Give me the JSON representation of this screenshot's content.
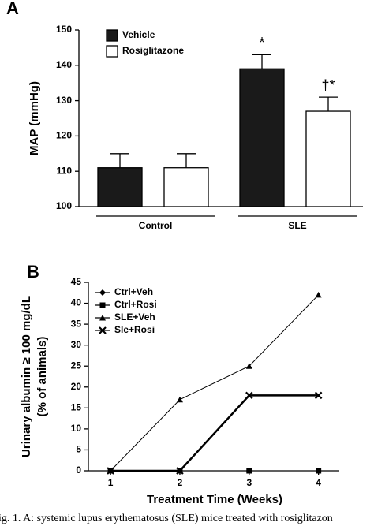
{
  "chart_data": [
    {
      "type": "bar",
      "panel_label": "A",
      "y_label": "MAP (mmHg)",
      "categories": [
        "Control",
        "SLE"
      ],
      "series": [
        {
          "name": "Vehicle",
          "color": "#1a1a1a",
          "values": [
            111,
            139
          ],
          "errors": [
            4,
            4
          ],
          "annotations": [
            null,
            "*"
          ]
        },
        {
          "name": "Rosiglitazone",
          "color": "#ffffff",
          "values": [
            111,
            127
          ],
          "errors": [
            4,
            4
          ],
          "annotations": [
            null,
            "†*"
          ]
        }
      ],
      "ylim": [
        100,
        150
      ],
      "yticks": [
        100,
        110,
        120,
        130,
        140,
        150
      ]
    },
    {
      "type": "line",
      "panel_label": "B",
      "x_label": "Treatment Time (Weeks)",
      "y_label": [
        "Urinary albumin ≥ 100 mg/dL",
        "(% of animals)"
      ],
      "x": [
        1,
        2,
        3,
        4
      ],
      "series": [
        {
          "name": "Ctrl+Veh",
          "color": "#000000",
          "marker": "diamond",
          "line_width": 1,
          "values": [
            0,
            0,
            0,
            0
          ]
        },
        {
          "name": "Ctrl+Rosi",
          "color": "#000000",
          "marker": "square",
          "line_width": 1,
          "values": [
            0,
            0,
            0,
            0
          ]
        },
        {
          "name": "SLE+Veh",
          "color": "#000000",
          "marker": "triangle",
          "line_width": 1,
          "values": [
            0,
            17,
            25,
            42
          ]
        },
        {
          "name": "Sle+Rosi",
          "color": "#000000",
          "marker": "x",
          "line_width": 2.5,
          "values": [
            0,
            0,
            18,
            18
          ]
        }
      ],
      "xlim": [
        0.68,
        4.3
      ],
      "xticks": [
        1,
        2,
        3,
        4
      ],
      "ylim": [
        0,
        45
      ],
      "yticks": [
        0,
        5,
        10,
        15,
        20,
        25,
        30,
        35,
        40,
        45
      ]
    }
  ],
  "caption": "ig. 1. A: systemic lupus erythematosus (SLE) mice treated with rosiglitazon"
}
